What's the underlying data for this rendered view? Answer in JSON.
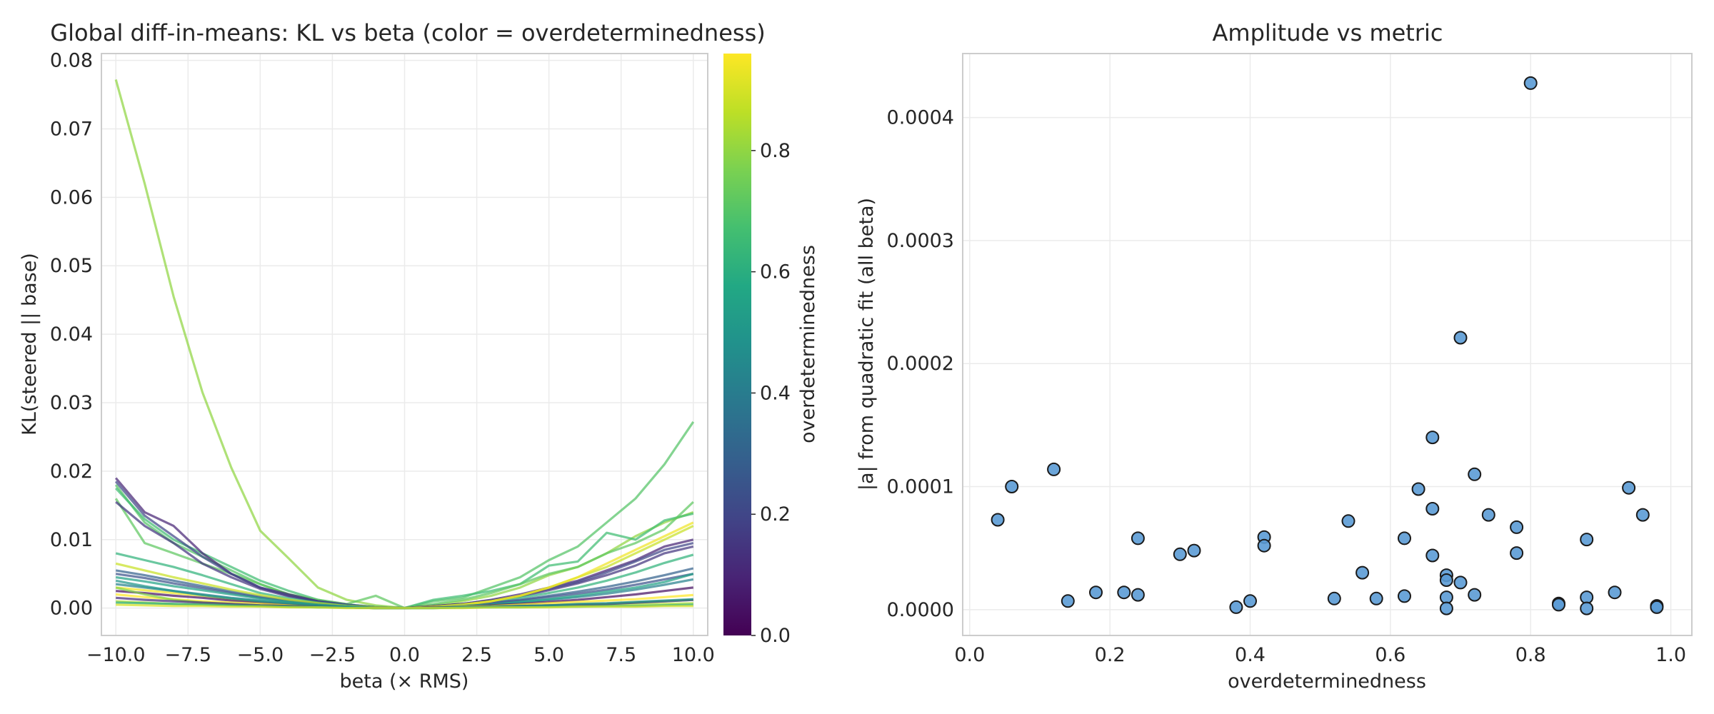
{
  "chart_data": [
    {
      "type": "line",
      "title": "Global diff-in-means: KL vs beta (color = overdeterminedness)",
      "xlabel": "beta (× RMS)",
      "ylabel": "KL(steered || base)",
      "xlim": [
        -10.5,
        10.5
      ],
      "ylim": [
        -0.004,
        0.081
      ],
      "xticks": [
        -10.0,
        -7.5,
        -5.0,
        -2.5,
        0.0,
        2.5,
        5.0,
        7.5,
        10.0
      ],
      "xtick_labels": [
        "−10.0",
        "−7.5",
        "−5.0",
        "−2.5",
        "0.0",
        "2.5",
        "5.0",
        "7.5",
        "10.0"
      ],
      "yticks": [
        0.0,
        0.01,
        0.02,
        0.03,
        0.04,
        0.05,
        0.06,
        0.07,
        0.08
      ],
      "ytick_labels": [
        "0.00",
        "0.01",
        "0.02",
        "0.03",
        "0.04",
        "0.05",
        "0.06",
        "0.07",
        "0.08"
      ],
      "grid": true,
      "colormap": "viridis",
      "colorbar": {
        "label": "overdeterminedness",
        "range": [
          0.0,
          0.96
        ],
        "ticks": [
          0.0,
          0.2,
          0.4,
          0.6,
          0.8
        ],
        "tick_labels": [
          "0.0",
          "0.2",
          "0.4",
          "0.6",
          "0.8"
        ]
      },
      "x": [
        -10,
        -9,
        -8,
        -7,
        -6,
        -5,
        -4,
        -3,
        -2,
        -1,
        0,
        1,
        2,
        3,
        4,
        5,
        6,
        7,
        8,
        9,
        10
      ],
      "series": [
        {
          "color_value": 0.8,
          "values": [
            0.0772,
            0.062,
            0.0455,
            0.0315,
            0.0205,
            0.0113,
            0.0072,
            0.003,
            0.0012,
            0.0004,
            0.0,
            0.0004,
            0.001,
            0.0018,
            0.003,
            0.0048,
            0.006,
            0.008,
            0.0105,
            0.0125,
            0.014
          ]
        },
        {
          "color_value": 0.7,
          "values": [
            0.018,
            0.0125,
            0.0095,
            0.0075,
            0.0055,
            0.0035,
            0.002,
            0.001,
            0.0005,
            0.0002,
            0.0,
            0.001,
            0.0015,
            0.003,
            0.0045,
            0.007,
            0.009,
            0.0125,
            0.016,
            0.021,
            0.0272
          ]
        },
        {
          "color_value": 0.66,
          "values": [
            0.0175,
            0.013,
            0.01,
            0.008,
            0.006,
            0.004,
            0.0025,
            0.0012,
            0.0005,
            0.0001,
            0.0,
            0.0012,
            0.0018,
            0.0025,
            0.0035,
            0.0062,
            0.0068,
            0.011,
            0.01,
            0.0128,
            0.0138
          ]
        },
        {
          "color_value": 0.72,
          "values": [
            0.016,
            0.0095,
            0.008,
            0.0065,
            0.005,
            0.0035,
            0.002,
            0.0012,
            0.0006,
            0.0018,
            0.0,
            0.0006,
            0.0012,
            0.0022,
            0.0035,
            0.005,
            0.006,
            0.008,
            0.0095,
            0.0115,
            0.0155
          ]
        },
        {
          "color_value": 0.1,
          "values": [
            0.019,
            0.014,
            0.012,
            0.008,
            0.005,
            0.003,
            0.002,
            0.001,
            0.0005,
            0.0001,
            0.0,
            0.0003,
            0.0006,
            0.0012,
            0.002,
            0.003,
            0.004,
            0.0055,
            0.007,
            0.009,
            0.01
          ]
        },
        {
          "color_value": 0.2,
          "values": [
            0.0185,
            0.0135,
            0.0105,
            0.0075,
            0.005,
            0.003,
            0.0018,
            0.001,
            0.0005,
            0.0001,
            0.0,
            0.0003,
            0.0006,
            0.0011,
            0.0018,
            0.0028,
            0.0038,
            0.0052,
            0.0068,
            0.0085,
            0.0095
          ]
        },
        {
          "color_value": 0.15,
          "values": [
            0.0155,
            0.012,
            0.0095,
            0.0065,
            0.0045,
            0.0028,
            0.0017,
            0.0009,
            0.0004,
            0.0001,
            0.0,
            0.0003,
            0.0006,
            0.0011,
            0.0017,
            0.0026,
            0.0036,
            0.0048,
            0.0062,
            0.008,
            0.009
          ]
        },
        {
          "color_value": 0.62,
          "values": [
            0.008,
            0.007,
            0.006,
            0.0048,
            0.0035,
            0.0022,
            0.0014,
            0.0008,
            0.0004,
            0.0001,
            0.0,
            0.0002,
            0.0005,
            0.001,
            0.0015,
            0.0022,
            0.003,
            0.004,
            0.0052,
            0.0066,
            0.0078
          ]
        },
        {
          "color_value": 0.3,
          "values": [
            0.0055,
            0.0048,
            0.004,
            0.0032,
            0.0024,
            0.0017,
            0.0011,
            0.0006,
            0.0003,
            0.0001,
            0.0,
            0.0002,
            0.0004,
            0.0008,
            0.0012,
            0.0018,
            0.0024,
            0.0031,
            0.0039,
            0.0048,
            0.0058
          ]
        },
        {
          "color_value": 0.24,
          "values": [
            0.005,
            0.0044,
            0.0036,
            0.0029,
            0.0022,
            0.0015,
            0.001,
            0.0006,
            0.0003,
            0.0001,
            0.0,
            0.0002,
            0.0004,
            0.0007,
            0.0011,
            0.0016,
            0.0021,
            0.0027,
            0.0034,
            0.0042,
            0.005
          ]
        },
        {
          "color_value": 0.88,
          "values": [
            0.0065,
            0.0055,
            0.0045,
            0.0036,
            0.0027,
            0.0019,
            0.0012,
            0.0007,
            0.0003,
            0.0001,
            0.0,
            0.0002,
            0.0005,
            0.001,
            0.0018,
            0.003,
            0.0045,
            0.006,
            0.008,
            0.01,
            0.012
          ]
        },
        {
          "color_value": 0.94,
          "values": [
            0.003,
            0.0026,
            0.0022,
            0.0018,
            0.0013,
            0.0009,
            0.0006,
            0.0003,
            0.0001,
            0.0,
            0.0,
            0.0002,
            0.0005,
            0.001,
            0.0018,
            0.003,
            0.0045,
            0.0065,
            0.0085,
            0.0105,
            0.0125
          ]
        },
        {
          "color_value": 0.42,
          "values": [
            0.0035,
            0.003,
            0.0025,
            0.002,
            0.0015,
            0.0011,
            0.0007,
            0.0004,
            0.0002,
            0.0,
            0.0,
            0.0001,
            0.0003,
            0.0005,
            0.0008,
            0.0012,
            0.0016,
            0.0021,
            0.0027,
            0.0034,
            0.0042
          ]
        },
        {
          "color_value": 0.55,
          "values": [
            0.0045,
            0.0039,
            0.0032,
            0.0026,
            0.002,
            0.0014,
            0.0009,
            0.0005,
            0.0002,
            0.0,
            0.0,
            0.0001,
            0.0003,
            0.0005,
            0.0009,
            0.0013,
            0.0018,
            0.0024,
            0.003,
            0.0038,
            0.005
          ]
        },
        {
          "color_value": 0.04,
          "values": [
            0.0025,
            0.0022,
            0.0018,
            0.0015,
            0.0011,
            0.0008,
            0.0005,
            0.0003,
            0.0001,
            0.0,
            0.0,
            0.0001,
            0.0002,
            0.0004,
            0.0006,
            0.0009,
            0.0012,
            0.0016,
            0.002,
            0.0025,
            0.003
          ]
        },
        {
          "color_value": 0.98,
          "values": [
            0.002,
            0.0016,
            0.0013,
            0.001,
            0.0008,
            0.0006,
            0.0004,
            0.0002,
            0.0001,
            0.0,
            0.0,
            0.0001,
            0.0002,
            0.0003,
            0.0005,
            0.0007,
            0.0009,
            0.0011,
            0.0013,
            0.0016,
            0.0019
          ]
        },
        {
          "color_value": 0.78,
          "values": [
            0.003,
            0.002,
            0.0012,
            0.0008,
            0.0006,
            0.0004,
            0.0003,
            0.0002,
            0.0001,
            0.0,
            0.0,
            0.0001,
            0.0001,
            0.0002,
            0.0003,
            0.0004,
            0.0005,
            0.0006,
            0.0008,
            0.001,
            0.0012
          ]
        },
        {
          "color_value": 0.84,
          "values": [
            0.001,
            0.0008,
            0.0006,
            0.0005,
            0.0004,
            0.0003,
            0.0002,
            0.0001,
            0.0001,
            0.0,
            0.0,
            0.0,
            0.0001,
            0.0001,
            0.0002,
            0.0003,
            0.0003,
            0.0004,
            0.0005,
            0.0006,
            0.0007
          ]
        },
        {
          "color_value": 0.12,
          "values": [
            0.0015,
            0.0012,
            0.001,
            0.0008,
            0.0006,
            0.0004,
            0.0003,
            0.0002,
            0.0001,
            0.0,
            0.0,
            0.0001,
            0.0001,
            0.0002,
            0.0003,
            0.0004,
            0.0005,
            0.0006,
            0.0008,
            0.001,
            0.0012
          ]
        },
        {
          "color_value": 0.6,
          "values": [
            0.0008,
            0.0007,
            0.0006,
            0.0005,
            0.0004,
            0.0003,
            0.0002,
            0.0001,
            0.0001,
            0.0,
            0.0,
            0.0,
            0.0001,
            0.0001,
            0.0001,
            0.0002,
            0.0002,
            0.0003,
            0.0003,
            0.0004,
            0.0005
          ]
        },
        {
          "color_value": 0.5,
          "values": [
            0.004,
            0.0032,
            0.0025,
            0.0019,
            0.0014,
            0.001,
            0.0007,
            0.0004,
            0.0002,
            0.0,
            0.0,
            0.0,
            0.0001,
            0.0002,
            0.0003,
            0.0004,
            0.0006,
            0.0007,
            0.0009,
            0.0011,
            0.0013
          ]
        },
        {
          "color_value": 0.9,
          "values": [
            0.0005,
            0.0004,
            0.0003,
            0.0003,
            0.0002,
            0.0002,
            0.0001,
            0.0001,
            0.0,
            0.0,
            0.0,
            0.0,
            0.0,
            0.0001,
            0.0001,
            0.0001,
            0.0002,
            0.0002,
            0.0002,
            0.0003,
            0.0003
          ]
        }
      ]
    },
    {
      "type": "scatter",
      "title": "Amplitude vs metric",
      "xlabel": "overdeterminedness",
      "ylabel": "|a| from quadratic fit (all beta)",
      "xlim": [
        -0.01,
        1.03
      ],
      "ylim": [
        -2.1e-05,
        0.000452
      ],
      "xticks": [
        0.0,
        0.2,
        0.4,
        0.6,
        0.8,
        1.0
      ],
      "xtick_labels": [
        "0.0",
        "0.2",
        "0.4",
        "0.6",
        "0.8",
        "1.0"
      ],
      "yticks": [
        0.0,
        0.0001,
        0.0002,
        0.0003,
        0.0004
      ],
      "ytick_labels": [
        "0.0000",
        "0.0001",
        "0.0002",
        "0.0003",
        "0.0004"
      ],
      "grid": true,
      "marker_color": "#5b9bd5",
      "points": [
        {
          "x": 0.04,
          "y": 7.3e-05
        },
        {
          "x": 0.06,
          "y": 0.0001
        },
        {
          "x": 0.12,
          "y": 0.000114
        },
        {
          "x": 0.14,
          "y": 7e-06
        },
        {
          "x": 0.18,
          "y": 1.4e-05
        },
        {
          "x": 0.22,
          "y": 1.4e-05
        },
        {
          "x": 0.24,
          "y": 5.8e-05
        },
        {
          "x": 0.24,
          "y": 1.2e-05
        },
        {
          "x": 0.3,
          "y": 4.5e-05
        },
        {
          "x": 0.32,
          "y": 4.8e-05
        },
        {
          "x": 0.38,
          "y": 2e-06
        },
        {
          "x": 0.4,
          "y": 7e-06
        },
        {
          "x": 0.42,
          "y": 5.9e-05
        },
        {
          "x": 0.42,
          "y": 5.2e-05
        },
        {
          "x": 0.52,
          "y": 9e-06
        },
        {
          "x": 0.54,
          "y": 7.2e-05
        },
        {
          "x": 0.56,
          "y": 3e-05
        },
        {
          "x": 0.58,
          "y": 9e-06
        },
        {
          "x": 0.62,
          "y": 5.8e-05
        },
        {
          "x": 0.62,
          "y": 1.1e-05
        },
        {
          "x": 0.64,
          "y": 9.8e-05
        },
        {
          "x": 0.66,
          "y": 0.00014
        },
        {
          "x": 0.66,
          "y": 8.2e-05
        },
        {
          "x": 0.66,
          "y": 4.4e-05
        },
        {
          "x": 0.68,
          "y": 2.8e-05
        },
        {
          "x": 0.68,
          "y": 2.4e-05
        },
        {
          "x": 0.68,
          "y": 1e-05
        },
        {
          "x": 0.68,
          "y": 1e-06
        },
        {
          "x": 0.7,
          "y": 0.000221
        },
        {
          "x": 0.7,
          "y": 2.2e-05
        },
        {
          "x": 0.72,
          "y": 0.00011
        },
        {
          "x": 0.72,
          "y": 1.2e-05
        },
        {
          "x": 0.74,
          "y": 7.7e-05
        },
        {
          "x": 0.78,
          "y": 6.7e-05
        },
        {
          "x": 0.78,
          "y": 4.6e-05
        },
        {
          "x": 0.8,
          "y": 0.000428
        },
        {
          "x": 0.84,
          "y": 5e-06
        },
        {
          "x": 0.84,
          "y": 4e-06
        },
        {
          "x": 0.88,
          "y": 5.7e-05
        },
        {
          "x": 0.88,
          "y": 1e-05
        },
        {
          "x": 0.88,
          "y": 1e-06
        },
        {
          "x": 0.92,
          "y": 1.4e-05
        },
        {
          "x": 0.94,
          "y": 9.9e-05
        },
        {
          "x": 0.96,
          "y": 7.7e-05
        },
        {
          "x": 0.98,
          "y": 3e-06
        },
        {
          "x": 0.98,
          "y": 2e-06
        }
      ]
    }
  ]
}
